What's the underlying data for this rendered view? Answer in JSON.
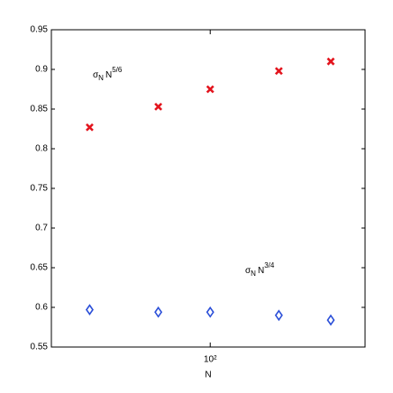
{
  "chart_data": {
    "type": "scatter",
    "xlabel": "N",
    "x": [
      20,
      50,
      100,
      250,
      500
    ],
    "xlim": [
      12,
      790
    ],
    "xscale": "log",
    "xticks": [
      {
        "value": 100,
        "label": "10²"
      }
    ],
    "ylim": [
      0.55,
      0.95
    ],
    "yticks": [
      0.55,
      0.6,
      0.65,
      0.7,
      0.75,
      0.8,
      0.85,
      0.9,
      0.95
    ],
    "grid": false,
    "series": [
      {
        "color": "#e3141d",
        "marker": "x",
        "values": [
          0.827,
          0.853,
          0.875,
          0.898,
          0.91
        ]
      },
      {
        "color": "#2b4fd8",
        "marker": "diamond",
        "values": [
          0.597,
          0.594,
          0.594,
          0.59,
          0.584
        ]
      }
    ],
    "annotations": [
      {
        "symbol": "σ",
        "subscript": "N",
        "base": "N",
        "superscript": "5/6"
      },
      {
        "symbol": "σ",
        "subscript": "N",
        "base": "N",
        "superscript": "3/4"
      }
    ]
  }
}
